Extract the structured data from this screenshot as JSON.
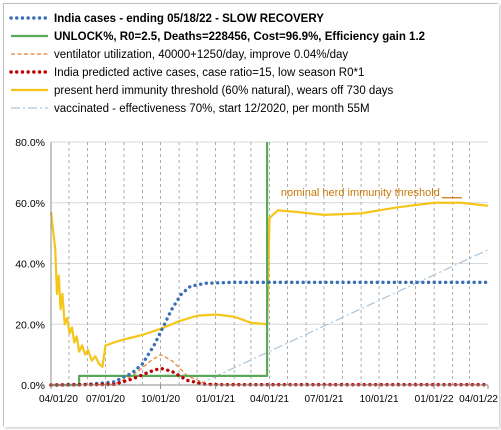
{
  "chart_data": {
    "type": "line",
    "title": "",
    "xlabel": "",
    "ylabel": "",
    "ylim": [
      0,
      0.8
    ],
    "y_tick_labels": [
      "0.0%",
      "20.0%",
      "40.0%",
      "60.0%",
      "80.0%"
    ],
    "x_tick_labels": [
      "04/01/20",
      "07/01/20",
      "10/01/20",
      "01/01/21",
      "04/01/21",
      "07/01/21",
      "10/01/21",
      "01/01/22",
      "04/01/22"
    ],
    "x_tick_dates": [
      "2020-04-01",
      "2020-07-01",
      "2020-10-01",
      "2021-01-01",
      "2021-04-01",
      "2021-07-01",
      "2021-10-01",
      "2022-01-01",
      "2022-04-01"
    ],
    "xlim": [
      "2020-04-01",
      "2022-04-01"
    ],
    "grid": {
      "horizontal": true,
      "vertical_dashed": true
    },
    "legend_position": "top",
    "annotation": {
      "text": "nominal herd immunity threshold",
      "x": "2021-04-20",
      "y": 0.6
    },
    "series": [
      {
        "name": "India cases - ending 05/18/22 - SLOW RECOVERY",
        "color": "#3d6fb5",
        "style": "dotted",
        "points": [
          [
            "2020-04-01",
            0
          ],
          [
            "2020-06-01",
            0.002
          ],
          [
            "2020-07-15",
            0.01
          ],
          [
            "2020-08-15",
            0.04
          ],
          [
            "2020-09-01",
            0.07
          ],
          [
            "2020-09-20",
            0.13
          ],
          [
            "2020-10-05",
            0.19
          ],
          [
            "2020-10-20",
            0.25
          ],
          [
            "2020-11-05",
            0.3
          ],
          [
            "2020-11-20",
            0.325
          ],
          [
            "2020-12-15",
            0.335
          ],
          [
            "2021-02-01",
            0.338
          ],
          [
            "2022-04-01",
            0.338
          ]
        ]
      },
      {
        "name": "UNLOCK%, R0=2.5,  Deaths=228456, Cost=96.9%, Efficiency gain 1.2",
        "color": "#5aa95a",
        "style": "solid",
        "points": [
          [
            "2020-04-01",
            0.0
          ],
          [
            "2020-05-18",
            0.0
          ],
          [
            "2020-05-18",
            0.03
          ],
          [
            "2021-03-28",
            0.03
          ],
          [
            "2021-03-28",
            0.8
          ]
        ]
      },
      {
        "name": "ventilator utilization, 40000+1250/day, improve 0.04%/day",
        "color": "#ed7d31",
        "style": "dashed",
        "points": [
          [
            "2020-04-01",
            0
          ],
          [
            "2020-07-15",
            0.002
          ],
          [
            "2020-08-15",
            0.03
          ],
          [
            "2020-09-15",
            0.08
          ],
          [
            "2020-10-01",
            0.1
          ],
          [
            "2020-10-20",
            0.08
          ],
          [
            "2020-11-15",
            0.03
          ],
          [
            "2020-12-15",
            0.005
          ],
          [
            "2021-01-15",
            0.001
          ],
          [
            "2022-04-01",
            0.001
          ]
        ]
      },
      {
        "name": "India predicted active cases, case ratio=15, low season R0*1",
        "color": "#c00000",
        "style": "dotted",
        "points": [
          [
            "2020-04-01",
            0
          ],
          [
            "2020-07-15",
            0.002
          ],
          [
            "2020-08-15",
            0.02
          ],
          [
            "2020-09-15",
            0.045
          ],
          [
            "2020-10-01",
            0.055
          ],
          [
            "2020-10-20",
            0.045
          ],
          [
            "2020-11-15",
            0.015
          ],
          [
            "2020-12-15",
            0.002
          ],
          [
            "2021-01-15",
            0.001
          ],
          [
            "2022-04-01",
            0.001
          ]
        ]
      },
      {
        "name": "present herd immunity threshold (60% natural), wears off 730 days",
        "color": "#f5c518",
        "style": "solid",
        "points": [
          [
            "2020-04-01",
            0.57
          ],
          [
            "2020-04-05",
            0.5
          ],
          [
            "2020-04-08",
            0.45
          ],
          [
            "2020-04-11",
            0.3
          ],
          [
            "2020-04-14",
            0.36
          ],
          [
            "2020-04-17",
            0.25
          ],
          [
            "2020-04-20",
            0.3
          ],
          [
            "2020-04-24",
            0.2
          ],
          [
            "2020-04-28",
            0.22
          ],
          [
            "2020-05-02",
            0.17
          ],
          [
            "2020-05-06",
            0.19
          ],
          [
            "2020-05-10",
            0.14
          ],
          [
            "2020-05-14",
            0.16
          ],
          [
            "2020-05-18",
            0.11
          ],
          [
            "2020-05-23",
            0.13
          ],
          [
            "2020-05-28",
            0.1
          ],
          [
            "2020-06-02",
            0.115
          ],
          [
            "2020-06-08",
            0.08
          ],
          [
            "2020-06-14",
            0.095
          ],
          [
            "2020-06-20",
            0.07
          ],
          [
            "2020-06-26",
            0.06
          ],
          [
            "2020-07-01",
            0.13
          ],
          [
            "2020-07-15",
            0.14
          ],
          [
            "2020-08-01",
            0.15
          ],
          [
            "2020-09-01",
            0.165
          ],
          [
            "2020-10-01",
            0.185
          ],
          [
            "2020-11-01",
            0.21
          ],
          [
            "2020-12-01",
            0.228
          ],
          [
            "2021-01-01",
            0.232
          ],
          [
            "2021-02-01",
            0.225
          ],
          [
            "2021-03-01",
            0.205
          ],
          [
            "2021-03-28",
            0.2
          ],
          [
            "2021-04-01",
            0.55
          ],
          [
            "2021-04-15",
            0.575
          ],
          [
            "2021-05-15",
            0.57
          ],
          [
            "2021-07-01",
            0.56
          ],
          [
            "2021-09-01",
            0.565
          ],
          [
            "2021-11-01",
            0.585
          ],
          [
            "2022-01-01",
            0.6
          ],
          [
            "2022-02-15",
            0.6
          ],
          [
            "2022-04-01",
            0.59
          ]
        ]
      },
      {
        "name": "vaccinated - effectiveness 70%, start 12/2020, per month 55M",
        "color": "#a9c4d9",
        "style": "dashdot",
        "points": [
          [
            "2020-12-01",
            0
          ],
          [
            "2022-04-01",
            0.445
          ]
        ]
      }
    ]
  }
}
